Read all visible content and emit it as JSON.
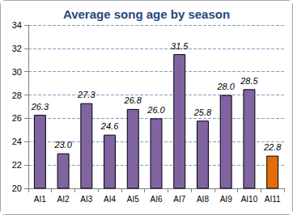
{
  "chart_data": {
    "type": "bar",
    "title": "Average song age by season",
    "categories": [
      "AI1",
      "AI2",
      "AI3",
      "AI4",
      "AI5",
      "AI6",
      "AI7",
      "AI8",
      "AI9",
      "AI10",
      "AI11"
    ],
    "values": [
      26.3,
      23.0,
      27.3,
      24.6,
      26.8,
      26.0,
      31.5,
      25.8,
      28.0,
      28.5,
      22.8
    ],
    "value_labels": [
      "26.3",
      "23.0",
      "27.3",
      "24.6",
      "26.8",
      "26.0",
      "31.5",
      "25.8",
      "28.0",
      "28.5",
      "22.8"
    ],
    "colors": [
      "#8064a2",
      "#8064a2",
      "#8064a2",
      "#8064a2",
      "#8064a2",
      "#8064a2",
      "#8064a2",
      "#8064a2",
      "#8064a2",
      "#8064a2",
      "#e46c0a"
    ],
    "ylim": [
      20,
      34
    ],
    "yticks": [
      20,
      22,
      24,
      26,
      28,
      30,
      32,
      34
    ],
    "grid": true,
    "data_labels": true
  }
}
